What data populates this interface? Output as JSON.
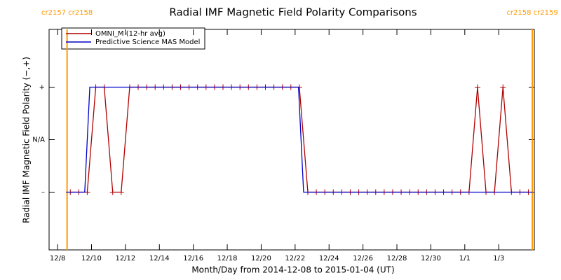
{
  "chart_data": {
    "type": "line",
    "title": "Radial IMF Magnetic Field Polarity Comparisons",
    "xlabel": "Month/Day from 2014-12-08 to 2015-01-04 (UT)",
    "ylabel": "Radial IMF Magnetic Field Polarity (−,+)",
    "xlim": [
      -0.5,
      28.1
    ],
    "ylim": [
      -2.1,
      2.1
    ],
    "xticks": [
      {
        "value": 0,
        "label": "12/8"
      },
      {
        "value": 2,
        "label": "12/10"
      },
      {
        "value": 4,
        "label": "12/12"
      },
      {
        "value": 6,
        "label": "12/14"
      },
      {
        "value": 8,
        "label": "12/16"
      },
      {
        "value": 10,
        "label": "12/18"
      },
      {
        "value": 12,
        "label": "12/20"
      },
      {
        "value": 14,
        "label": "12/22"
      },
      {
        "value": 16,
        "label": "12/24"
      },
      {
        "value": 18,
        "label": "12/26"
      },
      {
        "value": 20,
        "label": "12/28"
      },
      {
        "value": 22,
        "label": "12/30"
      },
      {
        "value": 24,
        "label": "1/1"
      },
      {
        "value": 26,
        "label": "1/3"
      }
    ],
    "yticks": [
      {
        "value": -1,
        "label": "–"
      },
      {
        "value": 0,
        "label": "N/A"
      },
      {
        "value": 1,
        "label": "+"
      }
    ],
    "rotations": [
      {
        "x": 0.56,
        "label": "cr2157 cr2158"
      },
      {
        "x": 27.98,
        "label": "cr2158 cr2159"
      }
    ],
    "rotation_color": "#ff9900",
    "series": [
      {
        "name": "OMNI_M (12-hr avg)",
        "color": "#b00000",
        "markers": true,
        "x": [
          0.75,
          1.25,
          1.75,
          2.25,
          2.75,
          3.25,
          3.75,
          4.25,
          4.75,
          5.25,
          5.75,
          6.25,
          6.75,
          7.25,
          7.75,
          8.25,
          8.75,
          9.25,
          9.75,
          10.25,
          10.75,
          11.25,
          11.75,
          12.25,
          12.75,
          13.25,
          13.75,
          14.25,
          14.75,
          15.25,
          15.75,
          16.25,
          16.75,
          17.25,
          17.75,
          18.25,
          18.75,
          19.25,
          19.75,
          20.25,
          20.75,
          21.25,
          21.75,
          22.25,
          22.75,
          23.25,
          23.75,
          24.25,
          24.75,
          25.25,
          25.75,
          26.25,
          26.75,
          27.25,
          27.75
        ],
        "values": [
          -1,
          -1,
          -1,
          1,
          1,
          -1,
          -1,
          1,
          1,
          1,
          1,
          1,
          1,
          1,
          1,
          1,
          1,
          1,
          1,
          1,
          1,
          1,
          1,
          1,
          1,
          1,
          1,
          1,
          -1,
          -1,
          -1,
          -1,
          -1,
          -1,
          -1,
          -1,
          -1,
          -1,
          -1,
          -1,
          -1,
          -1,
          -1,
          -1,
          -1,
          -1,
          -1,
          -1,
          1,
          -1,
          -1,
          1,
          -1,
          -1,
          -1
        ]
      },
      {
        "name": "Predictive Science MAS Model",
        "color": "#0000cc",
        "markers": false,
        "x": [
          0.5,
          1.6,
          1.9,
          14.2,
          14.5,
          28.0
        ],
        "values": [
          -1,
          -1,
          1,
          1,
          -1,
          -1
        ]
      }
    ]
  }
}
